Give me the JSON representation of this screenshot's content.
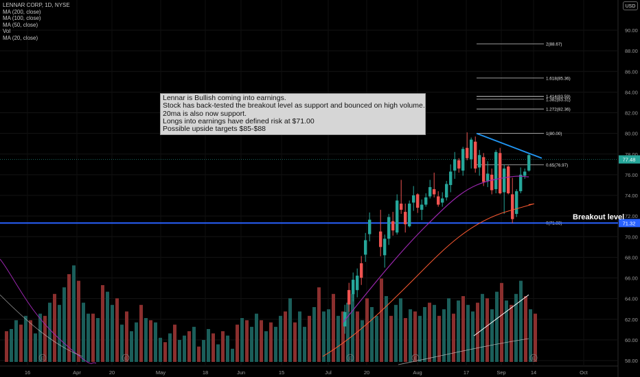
{
  "chart_data": {
    "type": "candlestick",
    "symbol_label": "LENNAR CORP, 1D, NYSE",
    "currency": "USD",
    "indicators": [
      "MA (200, close)",
      "MA (100, close)",
      "MA (50, close)",
      "Vol",
      "MA (20, close)"
    ],
    "y_axis": {
      "min": 57,
      "max": 92,
      "ticks": [
        "58.00",
        "60.00",
        "62.00",
        "64.00",
        "66.00",
        "68.00",
        "70.00",
        "72.00",
        "74.00",
        "76.00",
        "78.00",
        "80.00",
        "82.00",
        "84.00",
        "86.00",
        "88.00",
        "90.00"
      ]
    },
    "x_axis": {
      "ticks": [
        "16",
        "Apr",
        "20",
        "May",
        "18",
        "Jun",
        "15",
        "Jul",
        "20",
        "Aug",
        "17",
        "Sep",
        "14",
        "Oct"
      ]
    },
    "last_price": {
      "label": "77.48",
      "value": 77.48,
      "color": "#26a69a"
    },
    "support_price": {
      "label": "71.32",
      "value": 71.32,
      "color": "#2962ff"
    },
    "breakout_label": "Breakout level",
    "fib_levels": [
      {
        "label": "2(88.67)",
        "value": 88.67
      },
      {
        "label": "1.618(85.36)",
        "value": 85.36
      },
      {
        "label": "1.414(83.59)",
        "value": 83.59
      },
      {
        "label": "1.382(83.31)",
        "value": 83.31
      },
      {
        "label": "1.272(82.36)",
        "value": 82.36
      },
      {
        "label": "1(80.00)",
        "value": 80.0
      },
      {
        "label": "0.65(76.97)",
        "value": 76.97
      },
      {
        "label": "0(71.33)",
        "value": 71.33
      }
    ],
    "candles_ohlc": [
      [
        70.5,
        72.6,
        68.1,
        69.0
      ],
      [
        68.2,
        70.2,
        67.0,
        69.8
      ],
      [
        69.8,
        72.2,
        69.2,
        71.9
      ],
      [
        71.5,
        72.4,
        70.1,
        70.6
      ],
      [
        70.4,
        74.1,
        70.2,
        73.5
      ],
      [
        73.2,
        75.5,
        72.2,
        72.6
      ],
      [
        72.4,
        73.2,
        70.4,
        71.2
      ],
      [
        71.0,
        73.5,
        70.9,
        73.2
      ],
      [
        73.3,
        74.9,
        72.5,
        74.0
      ],
      [
        74.1,
        74.2,
        72.3,
        72.8
      ],
      [
        72.6,
        73.6,
        71.6,
        73.1
      ],
      [
        73.1,
        74.2,
        72.9,
        73.8
      ],
      [
        73.9,
        75.5,
        73.7,
        74.8
      ],
      [
        74.6,
        76.2,
        73.8,
        74.1
      ],
      [
        73.9,
        74.4,
        72.9,
        73.1
      ],
      [
        73.3,
        74.3,
        72.9,
        73.7
      ],
      [
        73.8,
        75.4,
        73.5,
        75.1
      ],
      [
        75.0,
        77.0,
        74.3,
        76.3
      ],
      [
        76.4,
        78.2,
        75.6,
        77.5
      ],
      [
        77.4,
        77.6,
        76.2,
        76.6
      ],
      [
        76.4,
        78.7,
        75.9,
        78.5
      ],
      [
        78.6,
        80.1,
        77.4,
        77.6
      ],
      [
        77.5,
        79.6,
        76.6,
        79.4
      ],
      [
        79.2,
        79.7,
        76.2,
        76.6
      ],
      [
        76.7,
        78.4,
        75.9,
        77.9
      ],
      [
        77.7,
        78.1,
        74.9,
        75.3
      ],
      [
        75.4,
        77.3,
        74.8,
        76.1
      ],
      [
        76.0,
        76.6,
        74.1,
        74.5
      ],
      [
        74.6,
        78.4,
        74.2,
        78.2
      ],
      [
        78.1,
        78.6,
        74.1,
        74.2
      ],
      [
        74.3,
        77.0,
        72.2,
        76.6
      ],
      [
        76.8,
        76.9,
        74.1,
        74.2
      ],
      [
        74.1,
        75.7,
        71.3,
        71.7
      ],
      [
        72.2,
        74.6,
        71.9,
        74.4
      ],
      [
        74.4,
        76.7,
        74.2,
        76.0
      ],
      [
        75.9,
        76.6,
        75.6,
        76.3
      ],
      [
        76.4,
        78.0,
        76.3,
        77.9
      ]
    ],
    "volume_values": [
      30,
      21,
      24,
      30,
      15,
      12,
      28,
      29,
      35,
      26,
      33,
      19,
      28,
      19,
      27,
      20,
      22,
      14,
      27,
      26,
      27,
      34,
      24,
      31,
      27,
      22,
      29,
      19,
      39,
      36,
      31,
      26,
      40,
      32,
      35,
      36,
      25
    ],
    "annotation": [
      "Lennar is Bullish coming into earnings.",
      "Stock has back-tested the breakout level as support and bounced on high volume.",
      "20ma is also now support.",
      "Longs into earnings have defined risk at $71.00",
      "Possible upside targets $85-$88"
    ],
    "colors": {
      "up": "#26a69a",
      "down": "#ef5350",
      "up_vol": "#1b5e5a",
      "down_vol": "#8b2f2e",
      "ma20": "#9c27b0",
      "ma50": "#ff5b32",
      "ma200": "#ffffff",
      "ma100": "#c7c7c7",
      "breakout": "#2962ff",
      "trendline": "#2196f3"
    },
    "grid": "on"
  }
}
